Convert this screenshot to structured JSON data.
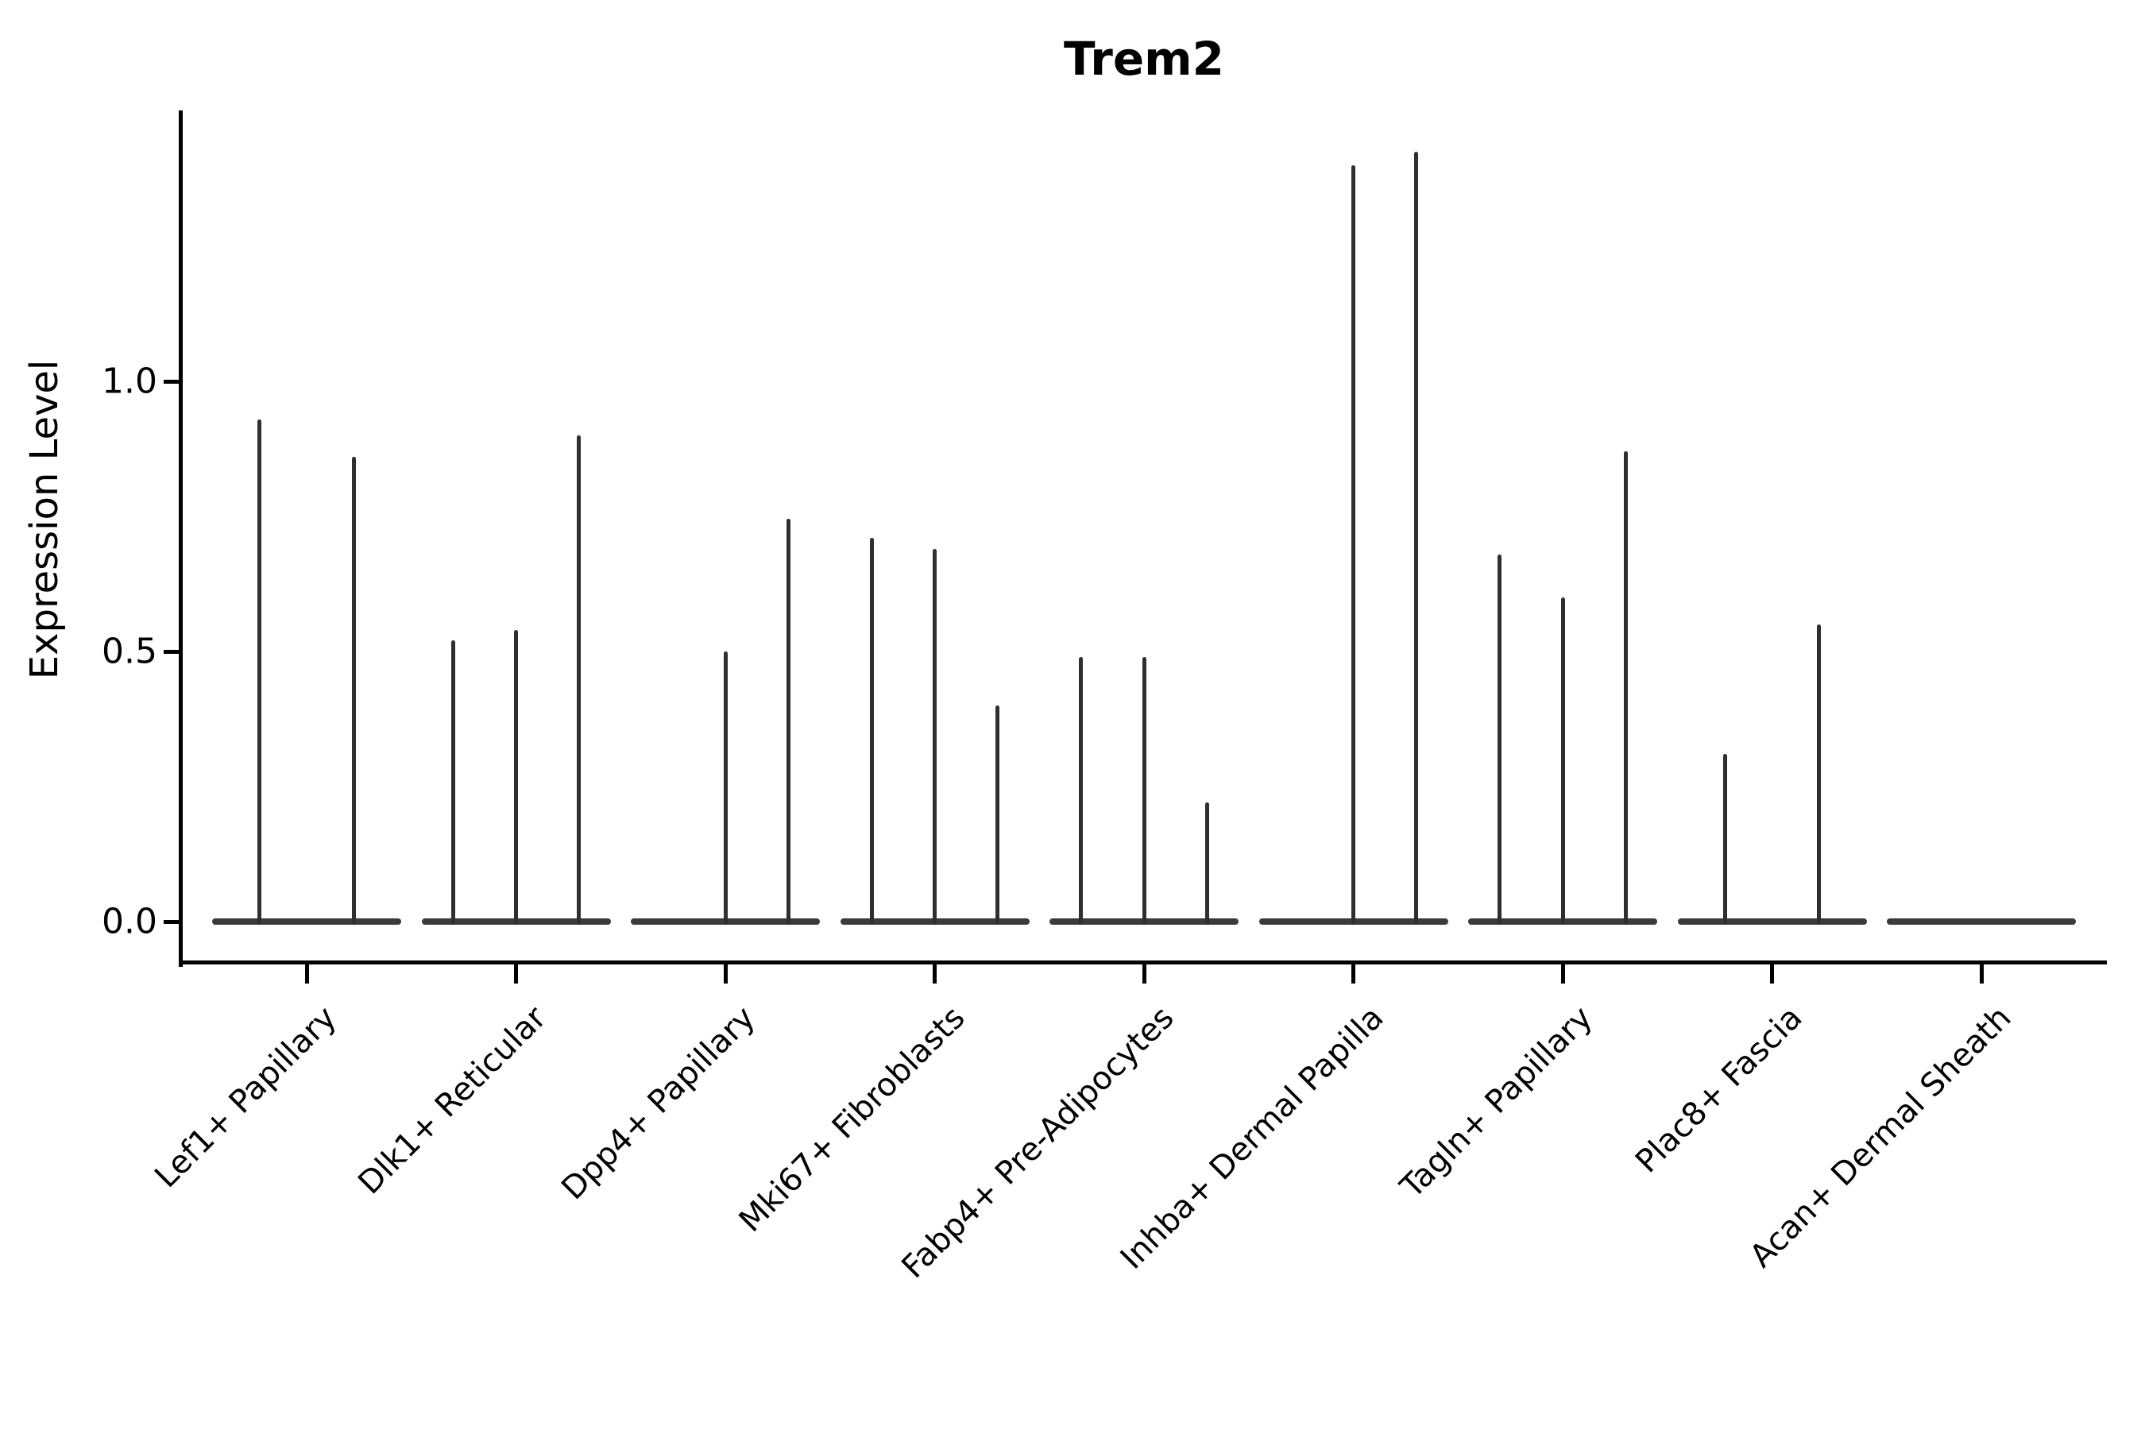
{
  "chart_data": {
    "type": "violin",
    "title": "Trem2",
    "ylabel": "Expression Level",
    "xlabel": "",
    "ylim": [
      -0.08,
      1.5
    ],
    "yticks": [
      0.0,
      0.5,
      1.0
    ],
    "ytick_labels": [
      "0.0",
      "0.5",
      "1.0"
    ],
    "grid": "off",
    "legend": "none",
    "categories": [
      "Lef1+ Papillary",
      "Dlk1+ Reticular",
      "Dpp4+ Papillary",
      "Mki67+ Fibroblasts",
      "Fabp4+ Pre-Adipocytes",
      "Inhba+ Dermal Papilla",
      "Tagln+ Papillary",
      "Plac8+ Fascia",
      "Acan+ Dermal Sheath"
    ],
    "groups": [
      {
        "category": "Lef1+ Papillary",
        "violins": [
          {
            "offset": -0.225,
            "peak": 0.93
          },
          {
            "offset": 0.225,
            "peak": 0.86
          }
        ]
      },
      {
        "category": "Dlk1+ Reticular",
        "violins": [
          {
            "offset": -0.3,
            "peak": 0.52
          },
          {
            "offset": 0,
            "peak": 0.54
          },
          {
            "offset": 0.3,
            "peak": 0.9
          }
        ]
      },
      {
        "category": "Dpp4+ Papillary",
        "violins": [
          {
            "offset": 0,
            "peak": 0.5
          },
          {
            "offset": 0.3,
            "peak": 0.745
          }
        ]
      },
      {
        "category": "Mki67+ Fibroblasts",
        "violins": [
          {
            "offset": -0.3,
            "peak": 0.71
          },
          {
            "offset": 0,
            "peak": 0.69
          },
          {
            "offset": 0.3,
            "peak": 0.4
          }
        ]
      },
      {
        "category": "Fabp4+ Pre-Adipocytes",
        "violins": [
          {
            "offset": -0.3,
            "peak": 0.49
          },
          {
            "offset": 0,
            "peak": 0.49
          },
          {
            "offset": 0.3,
            "peak": 0.22
          }
        ]
      },
      {
        "category": "Inhba+ Dermal Papilla",
        "violins": [
          {
            "offset": 0,
            "peak": 1.4
          },
          {
            "offset": 0.3,
            "peak": 1.425
          }
        ]
      },
      {
        "category": "Tagln+ Papillary",
        "violins": [
          {
            "offset": -0.3,
            "peak": 0.68
          },
          {
            "offset": 0,
            "peak": 0.6
          },
          {
            "offset": 0.3,
            "peak": 0.87
          }
        ]
      },
      {
        "category": "Plac8+ Fascia",
        "violins": [
          {
            "offset": -0.225,
            "peak": 0.31
          },
          {
            "offset": 0.225,
            "peak": 0.55
          }
        ]
      },
      {
        "category": "Acan+ Dermal Sheath",
        "violins": []
      }
    ],
    "colors": {
      "spike": "#2f2f2f",
      "base": "#3a3a3a",
      "axis": "#000000",
      "text": "#000000"
    }
  }
}
